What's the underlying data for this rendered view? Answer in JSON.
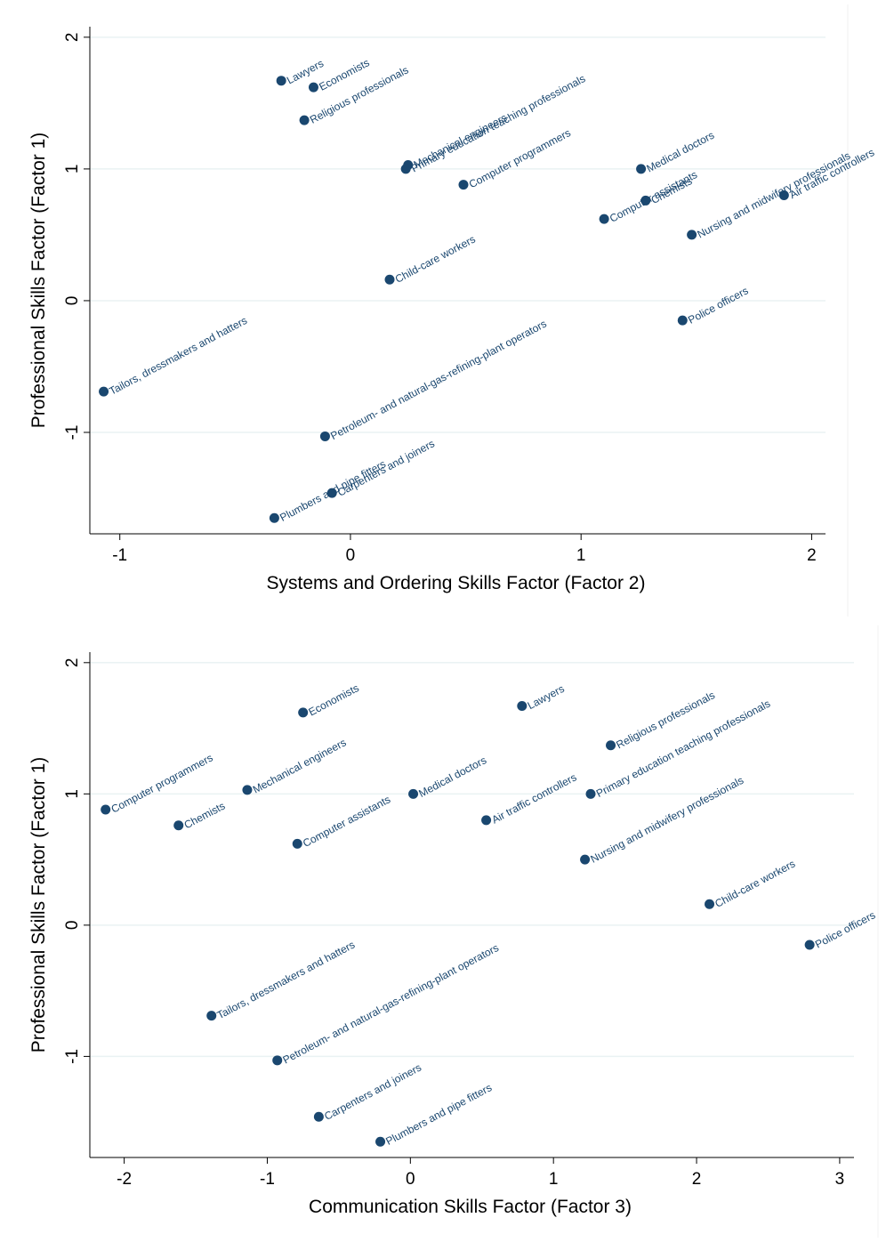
{
  "style": {
    "marker_color": "#1a476f",
    "grid_color": "#eaf2f3",
    "axis_color": "#000000",
    "background": "#ffffff"
  },
  "chart_data": [
    {
      "type": "scatter",
      "xlabel": "Systems and Ordering Skills Factor (Factor 2)",
      "ylabel": "Professional Skills Factor (Factor 1)",
      "xlim": [
        -1.13,
        2.06
      ],
      "ylim": [
        -1.77,
        2.08
      ],
      "xticks": [
        -1,
        0,
        1,
        2
      ],
      "yticks": [
        -1,
        0,
        1,
        2
      ],
      "grid": true,
      "label_angle": 28,
      "points": [
        {
          "label": "Lawyers",
          "x": -0.3,
          "y": 1.67
        },
        {
          "label": "Economists",
          "x": -0.16,
          "y": 1.62
        },
        {
          "label": "Religious professionals",
          "x": -0.2,
          "y": 1.37
        },
        {
          "label": "Mechanical engineers",
          "x": 0.25,
          "y": 1.03
        },
        {
          "label": "Primary education teaching professionals",
          "x": 0.24,
          "y": 1.0
        },
        {
          "label": "Computer programmers",
          "x": 0.49,
          "y": 0.88
        },
        {
          "label": "Medical doctors",
          "x": 1.26,
          "y": 1.0
        },
        {
          "label": "Computer assistants",
          "x": 1.1,
          "y": 0.62
        },
        {
          "label": "Chemists",
          "x": 1.28,
          "y": 0.76
        },
        {
          "label": "Nursing and midwifery professionals",
          "x": 1.48,
          "y": 0.5
        },
        {
          "label": "Air traffic controllers",
          "x": 1.88,
          "y": 0.8
        },
        {
          "label": "Child-care workers",
          "x": 0.17,
          "y": 0.16
        },
        {
          "label": "Police officers",
          "x": 1.44,
          "y": -0.15
        },
        {
          "label": "Tailors, dressmakers and hatters",
          "x": -1.07,
          "y": -0.69
        },
        {
          "label": "Petroleum- and natural-gas-refining-plant operators",
          "x": -0.11,
          "y": -1.03
        },
        {
          "label": "Plumbers and pipe fitters",
          "x": -0.33,
          "y": -1.65
        },
        {
          "label": "Carpenters and joiners",
          "x": -0.08,
          "y": -1.46
        }
      ]
    },
    {
      "type": "scatter",
      "xlabel": "Communication Skills Factor (Factor 3)",
      "ylabel": "Professional Skills Factor (Factor 1)",
      "xlim": [
        -2.24,
        3.1
      ],
      "ylim": [
        -1.77,
        2.08
      ],
      "xticks": [
        -2,
        -1,
        0,
        1,
        2,
        3
      ],
      "yticks": [
        -1,
        0,
        1,
        2
      ],
      "grid": true,
      "label_angle": 28,
      "points": [
        {
          "label": "Computer programmers",
          "x": -2.13,
          "y": 0.88
        },
        {
          "label": "Economists",
          "x": -0.75,
          "y": 1.62
        },
        {
          "label": "Mechanical engineers",
          "x": -1.14,
          "y": 1.03
        },
        {
          "label": "Chemists",
          "x": -1.62,
          "y": 0.76
        },
        {
          "label": "Computer assistants",
          "x": -0.79,
          "y": 0.62
        },
        {
          "label": "Lawyers",
          "x": 0.78,
          "y": 1.67
        },
        {
          "label": "Medical doctors",
          "x": 0.02,
          "y": 1.0
        },
        {
          "label": "Religious professionals",
          "x": 1.4,
          "y": 1.37
        },
        {
          "label": "Primary education teaching professionals",
          "x": 1.26,
          "y": 1.0
        },
        {
          "label": "Air traffic controllers",
          "x": 0.53,
          "y": 0.8
        },
        {
          "label": "Nursing and midwifery professionals",
          "x": 1.22,
          "y": 0.5
        },
        {
          "label": "Child-care workers",
          "x": 2.09,
          "y": 0.16
        },
        {
          "label": "Police officers",
          "x": 2.79,
          "y": -0.15
        },
        {
          "label": "Tailors, dressmakers and hatters",
          "x": -1.39,
          "y": -0.69
        },
        {
          "label": "Petroleum- and natural-gas-refining-plant operators",
          "x": -0.93,
          "y": -1.03
        },
        {
          "label": "Carpenters and joiners",
          "x": -0.64,
          "y": -1.46
        },
        {
          "label": "Plumbers and pipe fitters",
          "x": -0.21,
          "y": -1.65
        }
      ]
    }
  ]
}
